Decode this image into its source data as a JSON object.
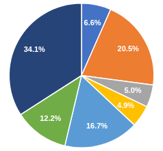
{
  "chart_data": {
    "type": "pie",
    "values": [
      6.6,
      20.5,
      5.0,
      4.9,
      16.7,
      12.2,
      34.1
    ],
    "value_labels": [
      "6.6%",
      "20.5%",
      "5.0%",
      "4.9%",
      "16.7%",
      "12.2%",
      "34.1%"
    ],
    "colors": [
      "#4472c4",
      "#ed7d31",
      "#a5a5a5",
      "#ffc000",
      "#5b9bd5",
      "#70ad47",
      "#264478"
    ],
    "data_labels": true
  }
}
